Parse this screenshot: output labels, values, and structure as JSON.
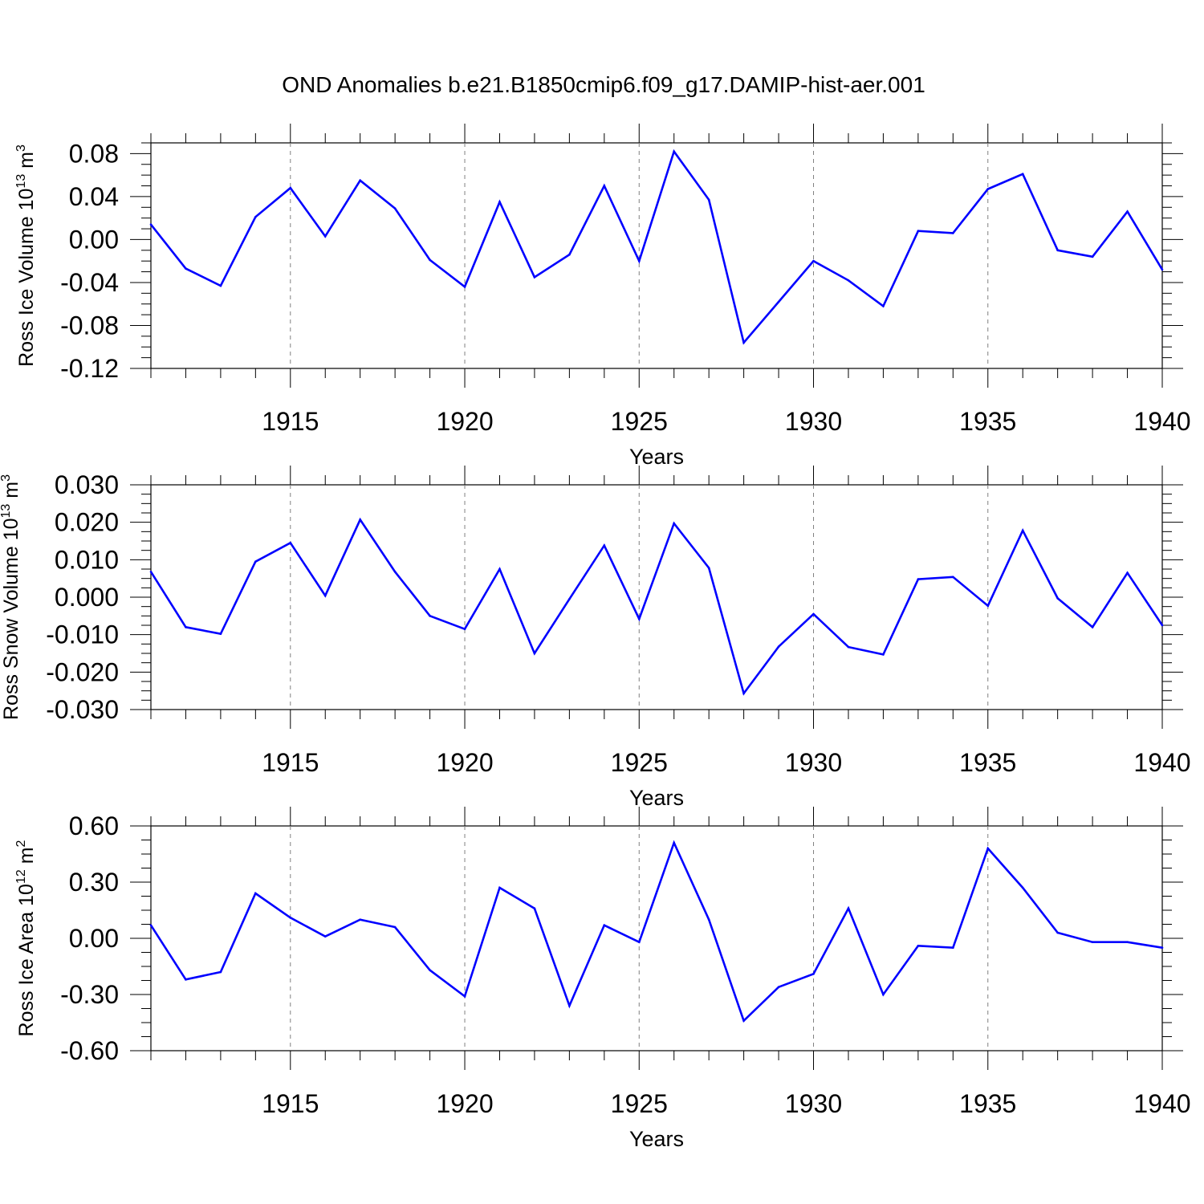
{
  "title": "OND Anomalies b.e21.B1850cmip6.f09_g17.DAMIP-hist-aer.001",
  "colors": {
    "line": "#0000ff",
    "axis": "#000000",
    "grid": "#808080",
    "background": "#ffffff"
  },
  "chart_data": [
    {
      "type": "line",
      "ylabel_main": "Ross Ice Volume 10",
      "ylabel_exp": "13",
      "ylabel_unit": " m",
      "ylabel_unit_exp": "3",
      "xlabel": "Years",
      "xlim": [
        1911,
        1940
      ],
      "ylim": [
        -0.12,
        0.09
      ],
      "yticks": [
        "-0.12",
        "-0.08",
        "-0.04",
        "0.00",
        "0.04",
        "0.08"
      ],
      "xticks": [
        "1915",
        "1920",
        "1925",
        "1930",
        "1935",
        "1940"
      ],
      "grid": "vertical dashed at major x ticks",
      "x": [
        1911,
        1912,
        1913,
        1914,
        1915,
        1916,
        1917,
        1918,
        1919,
        1920,
        1921,
        1922,
        1923,
        1924,
        1925,
        1926,
        1927,
        1928,
        1929,
        1930,
        1931,
        1932,
        1933,
        1934,
        1935,
        1936,
        1937,
        1938,
        1939,
        1940
      ],
      "series": [
        {
          "values": [
            0.014,
            -0.027,
            -0.043,
            0.021,
            0.048,
            0.003,
            0.055,
            0.029,
            -0.019,
            -0.044,
            0.035,
            -0.035,
            -0.014,
            0.05,
            -0.02,
            0.082,
            0.037,
            -0.096,
            -0.058,
            -0.02,
            -0.038,
            -0.062,
            0.008,
            0.006,
            0.047,
            0.061,
            -0.01,
            -0.016,
            0.026,
            -0.028
          ]
        }
      ]
    },
    {
      "type": "line",
      "ylabel_main": "Ross Snow Volume 10",
      "ylabel_exp": "13",
      "ylabel_unit": " m",
      "ylabel_unit_exp": "3",
      "xlabel": "Years",
      "xlim": [
        1911,
        1940
      ],
      "ylim": [
        -0.03,
        0.03
      ],
      "yticks": [
        "-0.030",
        "-0.020",
        "-0.010",
        "0.000",
        "0.010",
        "0.020",
        "0.030"
      ],
      "xticks": [
        "1915",
        "1920",
        "1925",
        "1930",
        "1935",
        "1940"
      ],
      "grid": "vertical dashed at major x ticks",
      "x": [
        1911,
        1912,
        1913,
        1914,
        1915,
        1916,
        1917,
        1918,
        1919,
        1920,
        1921,
        1922,
        1923,
        1924,
        1925,
        1926,
        1927,
        1928,
        1929,
        1930,
        1931,
        1932,
        1933,
        1934,
        1935,
        1936,
        1937,
        1938,
        1939,
        1940
      ],
      "series": [
        {
          "values": [
            0.0068,
            -0.008,
            -0.0098,
            0.0095,
            0.0145,
            0.0004,
            0.0207,
            0.0068,
            -0.005,
            -0.0085,
            0.0075,
            -0.015,
            -0.0005,
            0.0138,
            -0.0058,
            0.0197,
            0.0078,
            -0.0257,
            -0.0132,
            -0.0045,
            -0.0133,
            -0.0153,
            0.0048,
            0.0054,
            -0.0023,
            0.0178,
            -0.0003,
            -0.008,
            0.0065,
            -0.0075
          ]
        }
      ]
    },
    {
      "type": "line",
      "ylabel_main": "Ross Ice Area 10",
      "ylabel_exp": "12",
      "ylabel_unit": " m",
      "ylabel_unit_exp": "2",
      "xlabel": "Years",
      "xlim": [
        1911,
        1940
      ],
      "ylim": [
        -0.6,
        0.6
      ],
      "yticks": [
        "-0.60",
        "-0.30",
        "0.00",
        "0.30",
        "0.60"
      ],
      "xticks": [
        "1915",
        "1920",
        "1925",
        "1930",
        "1935",
        "1940"
      ],
      "grid": "vertical dashed at major x ticks",
      "x": [
        1911,
        1912,
        1913,
        1914,
        1915,
        1916,
        1917,
        1918,
        1919,
        1920,
        1921,
        1922,
        1923,
        1924,
        1925,
        1926,
        1927,
        1928,
        1929,
        1930,
        1931,
        1932,
        1933,
        1934,
        1935,
        1936,
        1937,
        1938,
        1939,
        1940
      ],
      "series": [
        {
          "values": [
            0.07,
            -0.22,
            -0.18,
            0.24,
            0.11,
            0.01,
            0.1,
            0.06,
            -0.17,
            -0.31,
            0.27,
            0.16,
            -0.36,
            0.07,
            -0.02,
            0.51,
            0.1,
            -0.44,
            -0.26,
            -0.19,
            0.16,
            -0.3,
            -0.04,
            -0.05,
            0.48,
            0.27,
            0.03,
            -0.02,
            -0.02,
            -0.05
          ]
        }
      ]
    }
  ]
}
